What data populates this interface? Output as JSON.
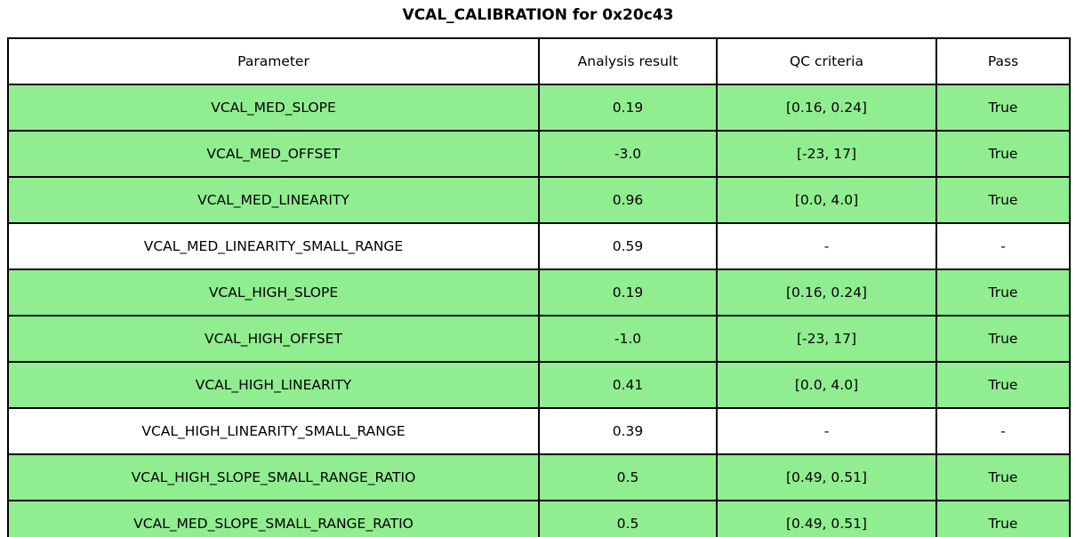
{
  "title": "VCAL_CALIBRATION for 0x20c43",
  "colors": {
    "pass_row_bg": "#90EE90",
    "neutral_row_bg": "#FFFFFF",
    "grid_line": "#000000",
    "text": "#000000"
  },
  "chart_data": {
    "type": "table",
    "title": "VCAL_CALIBRATION for 0x20c43",
    "columns": [
      "Parameter",
      "Analysis result",
      "QC criteria",
      "Pass"
    ],
    "rows": [
      {
        "cells": [
          "VCAL_MED_SLOPE",
          "0.19",
          "[0.16, 0.24]",
          "True"
        ],
        "highlight": true
      },
      {
        "cells": [
          "VCAL_MED_OFFSET",
          "-3.0",
          "[-23, 17]",
          "True"
        ],
        "highlight": true
      },
      {
        "cells": [
          "VCAL_MED_LINEARITY",
          "0.96",
          "[0.0, 4.0]",
          "True"
        ],
        "highlight": true
      },
      {
        "cells": [
          "VCAL_MED_LINEARITY_SMALL_RANGE",
          "0.59",
          "-",
          "-"
        ],
        "highlight": false
      },
      {
        "cells": [
          "VCAL_HIGH_SLOPE",
          "0.19",
          "[0.16, 0.24]",
          "True"
        ],
        "highlight": true
      },
      {
        "cells": [
          "VCAL_HIGH_OFFSET",
          "-1.0",
          "[-23, 17]",
          "True"
        ],
        "highlight": true
      },
      {
        "cells": [
          "VCAL_HIGH_LINEARITY",
          "0.41",
          "[0.0, 4.0]",
          "True"
        ],
        "highlight": true
      },
      {
        "cells": [
          "VCAL_HIGH_LINEARITY_SMALL_RANGE",
          "0.39",
          "-",
          "-"
        ],
        "highlight": false
      },
      {
        "cells": [
          "VCAL_HIGH_SLOPE_SMALL_RANGE_RATIO",
          "0.5",
          "[0.49, 0.51]",
          "True"
        ],
        "highlight": true
      },
      {
        "cells": [
          "VCAL_MED_SLOPE_SMALL_RANGE_RATIO",
          "0.5",
          "[0.49, 0.51]",
          "True"
        ],
        "highlight": true
      }
    ]
  }
}
